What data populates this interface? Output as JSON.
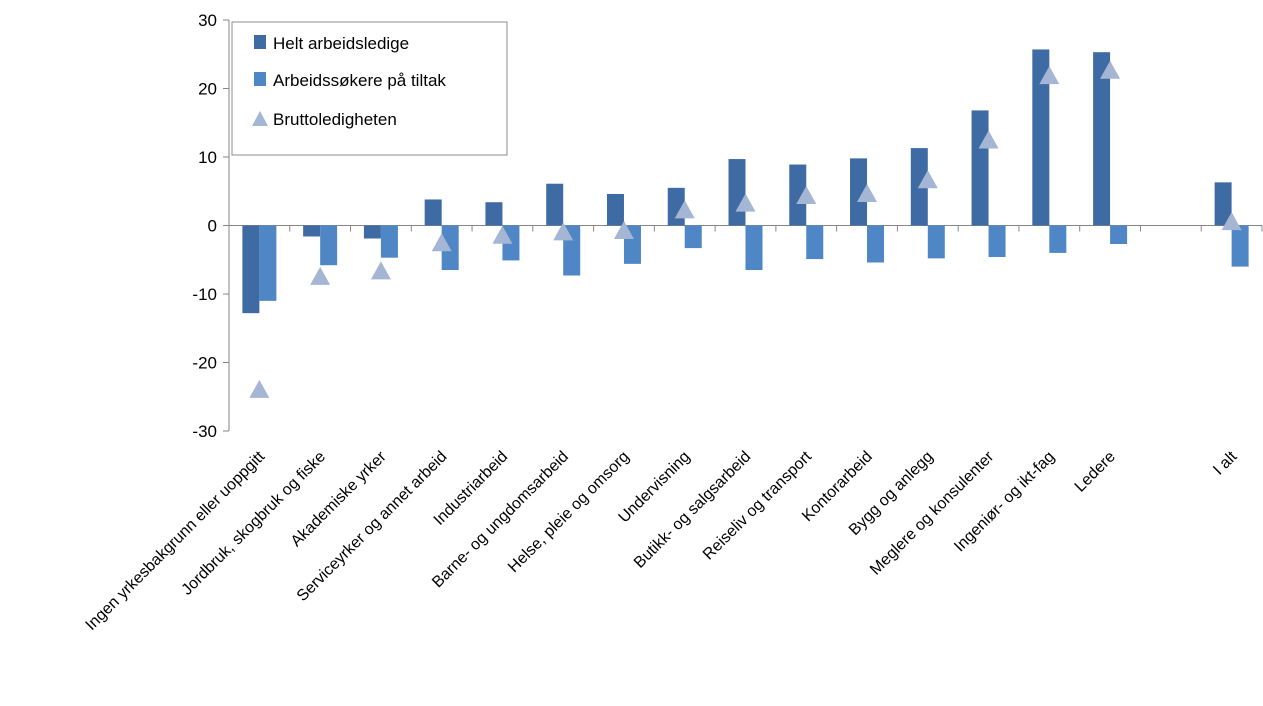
{
  "chart_data": {
    "type": "bar",
    "categories": [
      "Ingen yrkesbakgrunn eller uoppgitt",
      "Jordbruk, skogbruk og fiske",
      "Akademiske yrker",
      "Serviceyrker og annet arbeid",
      "Industriarbeid",
      "Barne- og ungdomsarbeid",
      "Helse, pleie og omsorg",
      "Undervisning",
      "Butikk- og salgsarbeid",
      "Reiseliv og transport",
      "Kontorarbeid",
      "Bygg og anlegg",
      "Meglere og konsulenter",
      "Ingeniør- og ikt-fag",
      "Ledere",
      "",
      "I alt"
    ],
    "series": [
      {
        "name": "Helt arbeidsledige",
        "kind": "bar",
        "color": "#3f6ba4",
        "values": [
          -12.8,
          -1.6,
          -1.9,
          3.8,
          3.4,
          6.1,
          4.6,
          5.5,
          9.7,
          8.9,
          9.8,
          11.3,
          16.8,
          25.7,
          25.3,
          null,
          6.3
        ]
      },
      {
        "name": "Arbeidssøkere på tiltak",
        "kind": "bar",
        "color": "#4f86c6",
        "values": [
          -11.0,
          -5.8,
          -4.7,
          -6.5,
          -5.1,
          -7.3,
          -5.6,
          -3.3,
          -6.5,
          -4.9,
          -5.4,
          -4.8,
          -4.6,
          -4.0,
          -2.7,
          null,
          -6.0
        ]
      },
      {
        "name": "Bruttoledigheten",
        "kind": "marker",
        "color": "#a5b6d4",
        "values": [
          -24.0,
          -7.5,
          -6.7,
          -2.6,
          -1.5,
          -1.0,
          -0.8,
          2.2,
          3.2,
          4.3,
          4.6,
          6.6,
          12.4,
          21.8,
          22.6,
          null,
          0.5
        ]
      }
    ],
    "y_ticks": [
      "30",
      "20",
      "10",
      "0",
      "-10",
      "-20",
      "-30"
    ],
    "ylim": [
      -30,
      30
    ],
    "grid": false,
    "legend_position": "top-left",
    "title": "",
    "xlabel": "",
    "ylabel": ""
  }
}
